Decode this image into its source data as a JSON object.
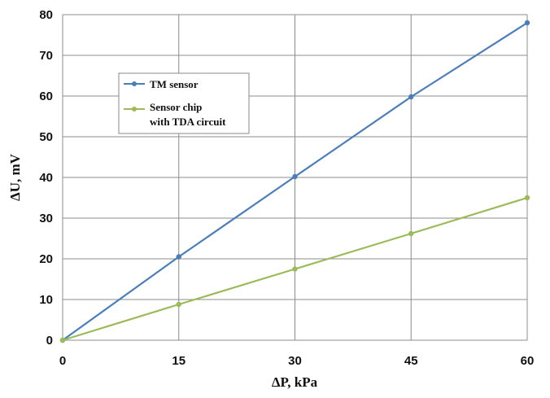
{
  "chart_data": {
    "type": "line",
    "xlabel": "ΔP, kPa",
    "ylabel": "ΔU, mV",
    "x": [
      0,
      15,
      30,
      45,
      60
    ],
    "xlim": [
      0,
      60
    ],
    "ylim": [
      0,
      80
    ],
    "x_ticks": [
      "0",
      "15",
      "30",
      "45",
      "60"
    ],
    "y_ticks": [
      "0",
      "10",
      "20",
      "30",
      "40",
      "50",
      "60",
      "70",
      "80"
    ],
    "grid": true,
    "legend_position": "upper-left",
    "series": [
      {
        "name": "TM sensor",
        "color": "#4a7ebb",
        "values": [
          0,
          20.5,
          40.2,
          59.8,
          78
        ]
      },
      {
        "name": "Sensor chip with TDA circuit",
        "name_lines": [
          "Sensor chip",
          "with TDA circuit"
        ],
        "color": "#9bbb59",
        "values": [
          0,
          8.8,
          17.5,
          26.2,
          35
        ]
      }
    ]
  }
}
